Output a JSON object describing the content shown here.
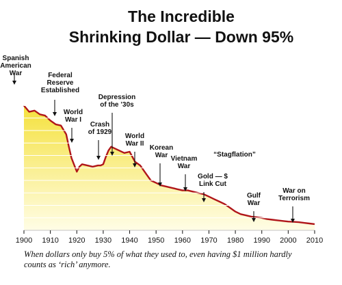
{
  "chart_data": {
    "type": "area",
    "title_lines": [
      "The Incredible",
      "Shrinking Dollar — Down 95%"
    ],
    "x_tick_labels": [
      "1900",
      "1910",
      "1920",
      "1930",
      "1940",
      "1950",
      "1960",
      "1970",
      "1980",
      "1990",
      "2000",
      "2010"
    ],
    "xlim": [
      1900,
      2010
    ],
    "ylim": [
      0,
      1.2
    ],
    "grid": true,
    "colors": {
      "line": "#b0161a",
      "fill_top": "#f5e13d",
      "fill_bottom": "#fffde6",
      "grid": "#ffffff"
    },
    "series": [
      {
        "x": [
          1900,
          1902,
          1904,
          1906,
          1908,
          1910,
          1912,
          1914,
          1916,
          1917,
          1918,
          1920,
          1921,
          1922,
          1924,
          1926,
          1928,
          1929,
          1930,
          1931,
          1932,
          1933,
          1934,
          1936,
          1938,
          1940,
          1942,
          1944,
          1946,
          1948,
          1950,
          1952,
          1954,
          1956,
          1958,
          1960,
          1962,
          1964,
          1966,
          1968,
          1970,
          1972,
          1974,
          1976,
          1978,
          1980,
          1982,
          1984,
          1986,
          1988,
          1990,
          1992,
          1994,
          1996,
          1998,
          2000,
          2002,
          2004,
          2006,
          2008,
          2010
        ],
        "y": [
          1.0,
          0.95,
          0.96,
          0.93,
          0.92,
          0.88,
          0.85,
          0.84,
          0.77,
          0.67,
          0.58,
          0.47,
          0.51,
          0.53,
          0.52,
          0.51,
          0.52,
          0.52,
          0.53,
          0.59,
          0.64,
          0.67,
          0.66,
          0.64,
          0.62,
          0.63,
          0.55,
          0.52,
          0.46,
          0.4,
          0.38,
          0.36,
          0.35,
          0.34,
          0.33,
          0.32,
          0.32,
          0.31,
          0.3,
          0.29,
          0.27,
          0.25,
          0.23,
          0.21,
          0.18,
          0.15,
          0.13,
          0.12,
          0.11,
          0.105,
          0.1,
          0.09,
          0.085,
          0.08,
          0.075,
          0.07,
          0.068,
          0.065,
          0.06,
          0.055,
          0.05
        ]
      }
    ],
    "annotations": [
      {
        "lines": [
          "Spanish",
          "American",
          "War"
        ],
        "x": 1898,
        "y": 1.0
      },
      {
        "lines": [
          "Federal",
          "Reserve",
          "Established"
        ],
        "x": 1913,
        "y": 0.85
      },
      {
        "lines": [
          "World",
          "War I"
        ],
        "x": 1917,
        "y": 0.67
      },
      {
        "lines": [
          "Crash",
          "of 1929"
        ],
        "x": 1929,
        "y": 0.52
      },
      {
        "lines": [
          "Depression",
          "of the ’30s"
        ],
        "x": 1933,
        "y": 0.67
      },
      {
        "lines": [
          "World",
          "War II"
        ],
        "x": 1942,
        "y": 0.55
      },
      {
        "lines": [
          "Korean",
          "War"
        ],
        "x": 1951,
        "y": 0.37
      },
      {
        "lines": [
          "Vietnam",
          "War"
        ],
        "x": 1961,
        "y": 0.32
      },
      {
        "lines": [
          "Gold — $",
          "Link Cut"
        ],
        "x": 1971,
        "y": 0.26
      },
      {
        "lines": [
          "“Stagflation”"
        ],
        "x": null,
        "y": null
      },
      {
        "lines": [
          "Gulf",
          "War"
        ],
        "x": 1990,
        "y": 0.1
      },
      {
        "lines": [
          "War on",
          "Terrorism"
        ],
        "x": 2001,
        "y": 0.069
      }
    ]
  },
  "caption_lines": [
    "When dollars only buy 5% of what they used to, even having $1 million hardly",
    "counts as ‘rich’ anymore."
  ]
}
